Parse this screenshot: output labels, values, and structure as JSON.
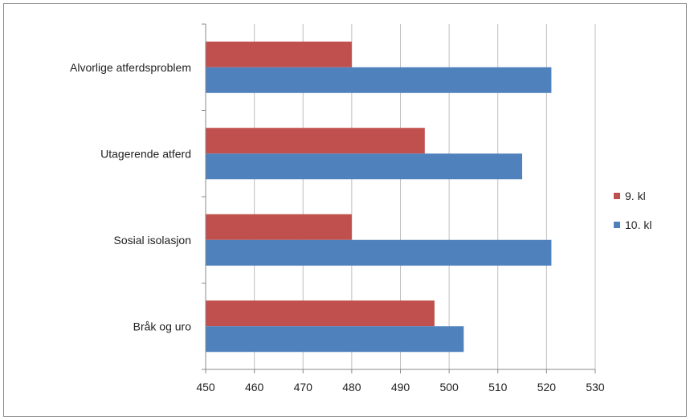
{
  "chart_data": {
    "type": "bar",
    "orientation": "horizontal",
    "categories": [
      "Alvorlige atferdsproblem",
      "Utagerende atferd",
      "Sosial isolasjon",
      "Bråk og uro"
    ],
    "series": [
      {
        "name": "9. kl",
        "color": "#c0504d",
        "values": [
          480,
          495,
          480,
          497
        ]
      },
      {
        "name": "10. kl",
        "color": "#4f81bd",
        "values": [
          521,
          515,
          521,
          503
        ]
      }
    ],
    "xlim": [
      450,
      530
    ],
    "xticks": [
      450,
      460,
      470,
      480,
      490,
      500,
      510,
      520,
      530
    ],
    "grid": true,
    "legend_position": "right",
    "title": "",
    "xlabel": "",
    "ylabel": ""
  }
}
